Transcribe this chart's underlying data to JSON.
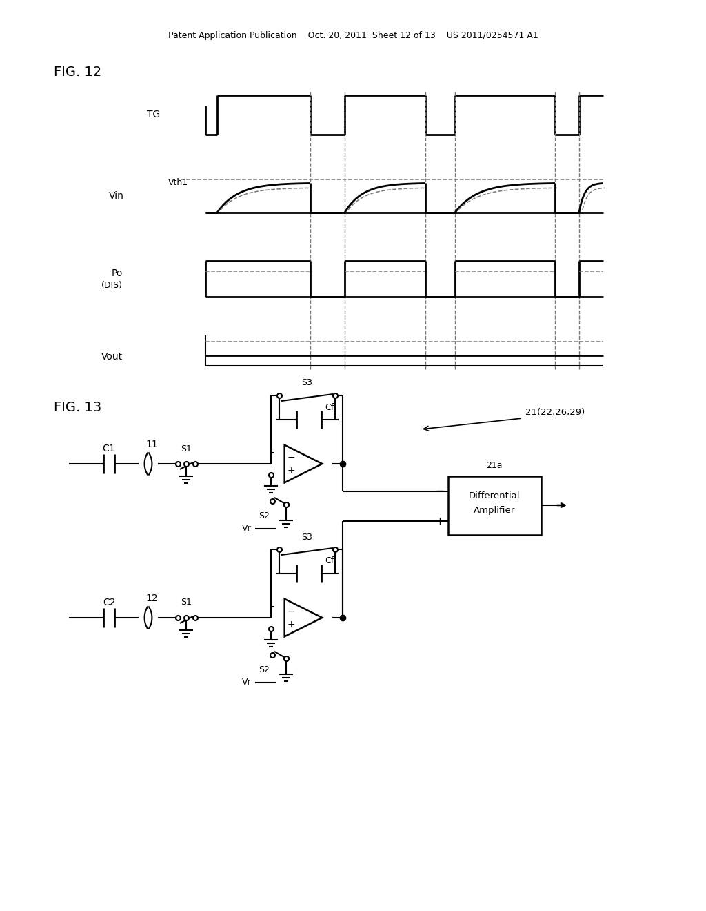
{
  "bg_color": "#ffffff",
  "line_color": "#000000",
  "dashed_color": "#777777",
  "header_text": "Patent Application Publication    Oct. 20, 2011  Sheet 12 of 13    US 2011/0254571 A1",
  "fig12_label": "FIG. 12",
  "fig13_label": "FIG. 13",
  "tg_label": "TG",
  "vin_label": "Vin",
  "vth1_label": "Vth1",
  "po_label": "Po",
  "dis_label": "(DIS)",
  "vout_label": "Vout",
  "s1_label": "S1",
  "s2_label": "S2",
  "s3_label": "S3",
  "cf_label": "Cf",
  "c1_label": "C1",
  "c2_label": "C2",
  "num11_label": "11",
  "num12_label": "12",
  "vr_label": "Vr",
  "da_label1": "Differential",
  "da_label2": "Amplifier",
  "da_ref": "21a",
  "block_ref": "21(22,26,29)"
}
